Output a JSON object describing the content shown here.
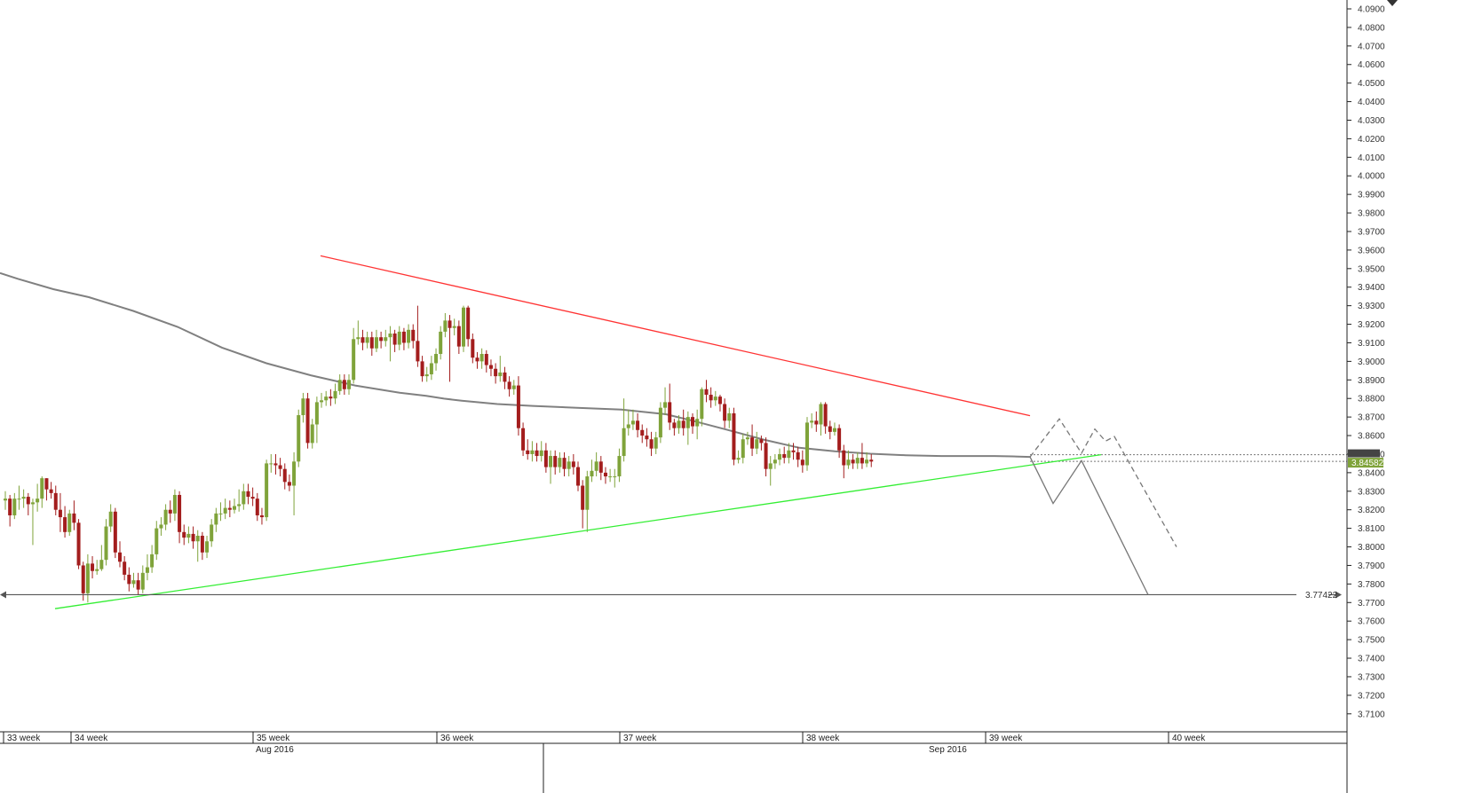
{
  "window": {
    "menu_icon": "chevron-down-icon"
  },
  "colors": {
    "bull": "#7fa33a",
    "bear": "#a31d1d",
    "ma": "#808080",
    "resistance": "#ff3333",
    "support": "#33ee33",
    "level": "#555555",
    "projection": "#777777",
    "price_badge": "#7fa33a"
  },
  "chart_data": {
    "type": "candlestick",
    "title": "",
    "xlabel": "",
    "ylabel": "",
    "ylim": [
      3.7,
      4.09
    ],
    "yticks": [
      "4.0900",
      "4.0800",
      "4.0700",
      "4.0600",
      "4.0500",
      "4.0400",
      "4.0300",
      "4.0200",
      "4.0100",
      "4.0000",
      "3.9900",
      "3.9800",
      "3.9700",
      "3.9600",
      "3.9500",
      "3.9400",
      "3.9300",
      "3.9200",
      "3.9100",
      "3.9000",
      "3.8900",
      "3.8800",
      "3.8700",
      "3.8600",
      "3.8500",
      "3.8400",
      "3.8300",
      "3.8200",
      "3.8100",
      "3.8000",
      "3.7900",
      "3.7800",
      "3.7700",
      "3.7600",
      "3.7500",
      "3.7400",
      "3.7300",
      "3.7200",
      "3.7100"
    ],
    "week_labels": [
      "33 week",
      "34 week",
      "35 week",
      "36 week",
      "37 week",
      "38 week",
      "39 week",
      "40 week"
    ],
    "month_labels": [
      "Aug 2016",
      "Sep 2016"
    ],
    "current_price": "3.84582",
    "level_label": "3.77422",
    "level_value": 3.77422,
    "candles": [
      [
        3.825,
        3.826,
        3.82,
        3.83
      ],
      [
        3.826,
        3.817,
        3.811,
        3.828
      ],
      [
        3.817,
        3.826,
        3.815,
        3.829
      ],
      [
        3.826,
        3.826,
        3.82,
        3.833
      ],
      [
        3.826,
        3.827,
        3.821,
        3.831
      ],
      [
        3.827,
        3.823,
        3.817,
        3.829
      ],
      [
        3.823,
        3.824,
        3.801,
        3.826
      ],
      [
        3.824,
        3.826,
        3.819,
        3.834
      ],
      [
        3.826,
        3.837,
        3.821,
        3.838
      ],
      [
        3.837,
        3.831,
        3.825,
        3.837
      ],
      [
        3.831,
        3.829,
        3.826,
        3.835
      ],
      [
        3.829,
        3.82,
        3.817,
        3.833
      ],
      [
        3.82,
        3.816,
        3.808,
        3.829
      ],
      [
        3.816,
        3.808,
        3.805,
        3.822
      ],
      [
        3.808,
        3.818,
        3.806,
        3.82
      ],
      [
        3.818,
        3.813,
        3.809,
        3.825
      ],
      [
        3.813,
        3.79,
        3.788,
        3.815
      ],
      [
        3.79,
        3.775,
        3.771,
        3.792
      ],
      [
        3.775,
        3.791,
        3.77,
        3.796
      ],
      [
        3.791,
        3.787,
        3.783,
        3.795
      ],
      [
        3.787,
        3.788,
        3.785,
        3.793
      ],
      [
        3.788,
        3.793,
        3.787,
        3.801
      ],
      [
        3.793,
        3.811,
        3.79,
        3.815
      ],
      [
        3.811,
        3.819,
        3.808,
        3.823
      ],
      [
        3.819,
        3.797,
        3.794,
        3.821
      ],
      [
        3.797,
        3.792,
        3.789,
        3.803
      ],
      [
        3.792,
        3.785,
        3.782,
        3.795
      ],
      [
        3.785,
        3.78,
        3.776,
        3.789
      ],
      [
        3.78,
        3.782,
        3.778,
        3.786
      ],
      [
        3.782,
        3.777,
        3.774,
        3.786
      ],
      [
        3.777,
        3.786,
        3.775,
        3.79
      ],
      [
        3.786,
        3.789,
        3.782,
        3.796
      ],
      [
        3.789,
        3.796,
        3.786,
        3.801
      ],
      [
        3.796,
        3.81,
        3.793,
        3.814
      ],
      [
        3.81,
        3.812,
        3.806,
        3.816
      ],
      [
        3.812,
        3.82,
        3.809,
        3.823
      ],
      [
        3.82,
        3.818,
        3.813,
        3.825
      ],
      [
        3.818,
        3.828,
        3.814,
        3.831
      ],
      [
        3.828,
        3.808,
        3.802,
        3.83
      ],
      [
        3.808,
        3.805,
        3.801,
        3.812
      ],
      [
        3.805,
        3.807,
        3.802,
        3.811
      ],
      [
        3.807,
        3.803,
        3.799,
        3.811
      ],
      [
        3.803,
        3.806,
        3.792,
        3.809
      ],
      [
        3.806,
        3.797,
        3.793,
        3.808
      ],
      [
        3.797,
        3.803,
        3.794,
        3.806
      ],
      [
        3.803,
        3.812,
        3.8,
        3.815
      ],
      [
        3.812,
        3.818,
        3.808,
        3.821
      ],
      [
        3.818,
        3.818,
        3.814,
        3.824
      ],
      [
        3.818,
        3.821,
        3.815,
        3.826
      ],
      [
        3.821,
        3.82,
        3.816,
        3.825
      ],
      [
        3.82,
        3.822,
        3.818,
        3.826
      ],
      [
        3.822,
        3.823,
        3.819,
        3.831
      ],
      [
        3.823,
        3.83,
        3.82,
        3.834
      ],
      [
        3.83,
        3.827,
        3.823,
        3.834
      ],
      [
        3.827,
        3.826,
        3.822,
        3.832
      ],
      [
        3.826,
        3.817,
        3.814,
        3.829
      ],
      [
        3.817,
        3.816,
        3.812,
        3.821
      ],
      [
        3.816,
        3.845,
        3.814,
        3.847
      ],
      [
        3.845,
        3.845,
        3.84,
        3.85
      ],
      [
        3.845,
        3.844,
        3.839,
        3.85
      ],
      [
        3.844,
        3.842,
        3.838,
        3.848
      ],
      [
        3.842,
        3.835,
        3.831,
        3.845
      ],
      [
        3.835,
        3.833,
        3.83,
        3.839
      ],
      [
        3.833,
        3.846,
        3.817,
        3.851
      ],
      [
        3.846,
        3.871,
        3.843,
        3.874
      ],
      [
        3.871,
        3.88,
        3.867,
        3.883
      ],
      [
        3.88,
        3.856,
        3.853,
        3.883
      ],
      [
        3.856,
        3.866,
        3.853,
        3.869
      ],
      [
        3.866,
        3.878,
        3.856,
        3.881
      ],
      [
        3.878,
        3.879,
        3.875,
        3.883
      ],
      [
        3.879,
        3.881,
        3.876,
        3.884
      ],
      [
        3.881,
        3.88,
        3.876,
        3.885
      ],
      [
        3.88,
        3.884,
        3.877,
        3.888
      ],
      [
        3.884,
        3.89,
        3.882,
        3.893
      ],
      [
        3.89,
        3.885,
        3.882,
        3.893
      ],
      [
        3.885,
        3.89,
        3.882,
        3.893
      ],
      [
        3.89,
        3.912,
        3.888,
        3.918
      ],
      [
        3.912,
        3.913,
        3.909,
        3.922
      ],
      [
        3.913,
        3.91,
        3.906,
        3.917
      ],
      [
        3.91,
        3.913,
        3.907,
        3.916
      ],
      [
        3.913,
        3.907,
        3.903,
        3.916
      ],
      [
        3.907,
        3.913,
        3.905,
        3.917
      ],
      [
        3.913,
        3.911,
        3.907,
        3.916
      ],
      [
        3.911,
        3.913,
        3.908,
        3.917
      ],
      [
        3.913,
        3.915,
        3.9,
        3.919
      ],
      [
        3.915,
        3.909,
        3.905,
        3.917
      ],
      [
        3.909,
        3.916,
        3.906,
        3.919
      ],
      [
        3.916,
        3.91,
        3.906,
        3.918
      ],
      [
        3.91,
        3.917,
        3.907,
        3.92
      ],
      [
        3.917,
        3.911,
        3.907,
        3.92
      ],
      [
        3.911,
        3.9,
        3.897,
        3.93
      ],
      [
        3.9,
        3.892,
        3.889,
        3.903
      ],
      [
        3.892,
        3.893,
        3.889,
        3.897
      ],
      [
        3.893,
        3.899,
        3.89,
        3.903
      ],
      [
        3.899,
        3.904,
        3.895,
        3.907
      ],
      [
        3.904,
        3.916,
        3.901,
        3.919
      ],
      [
        3.916,
        3.922,
        3.913,
        3.926
      ],
      [
        3.922,
        3.918,
        3.889,
        3.925
      ],
      [
        3.918,
        3.919,
        3.914,
        3.923
      ],
      [
        3.919,
        3.908,
        3.904,
        3.922
      ],
      [
        3.908,
        3.929,
        3.905,
        3.93
      ],
      [
        3.929,
        3.912,
        3.908,
        3.93
      ],
      [
        3.912,
        3.902,
        3.899,
        3.915
      ],
      [
        3.902,
        3.9,
        3.896,
        3.905
      ],
      [
        3.9,
        3.904,
        3.896,
        3.907
      ],
      [
        3.904,
        3.898,
        3.894,
        3.906
      ],
      [
        3.898,
        3.896,
        3.892,
        3.901
      ],
      [
        3.896,
        3.892,
        3.888,
        3.899
      ],
      [
        3.892,
        3.894,
        3.889,
        3.903
      ],
      [
        3.894,
        3.889,
        3.885,
        3.897
      ],
      [
        3.889,
        3.885,
        3.881,
        3.892
      ],
      [
        3.885,
        3.887,
        3.882,
        3.89
      ],
      [
        3.887,
        3.864,
        3.86,
        3.892
      ],
      [
        3.864,
        3.852,
        3.849,
        3.867
      ],
      [
        3.852,
        3.85,
        3.847,
        3.858
      ],
      [
        3.85,
        3.852,
        3.846,
        3.857
      ],
      [
        3.852,
        3.849,
        3.846,
        3.856
      ],
      [
        3.849,
        3.852,
        3.846,
        3.857
      ],
      [
        3.852,
        3.843,
        3.84,
        3.856
      ],
      [
        3.843,
        3.849,
        3.834,
        3.852
      ],
      [
        3.849,
        3.843,
        3.839,
        3.852
      ],
      [
        3.843,
        3.848,
        3.84,
        3.851
      ],
      [
        3.848,
        3.842,
        3.838,
        3.851
      ],
      [
        3.842,
        3.846,
        3.838,
        3.849
      ],
      [
        3.846,
        3.843,
        3.839,
        3.85
      ],
      [
        3.843,
        3.833,
        3.83,
        3.846
      ],
      [
        3.833,
        3.82,
        3.81,
        3.836
      ],
      [
        3.82,
        3.838,
        3.808,
        3.841
      ],
      [
        3.838,
        3.841,
        3.835,
        3.847
      ],
      [
        3.841,
        3.846,
        3.838,
        3.851
      ],
      [
        3.846,
        3.84,
        3.836,
        3.849
      ],
      [
        3.84,
        3.838,
        3.834,
        3.843
      ],
      [
        3.838,
        3.838,
        3.835,
        3.842
      ],
      [
        3.838,
        3.838,
        3.832,
        3.842
      ],
      [
        3.838,
        3.849,
        3.835,
        3.853
      ],
      [
        3.849,
        3.864,
        3.846,
        3.88
      ],
      [
        3.864,
        3.866,
        3.86,
        3.874
      ],
      [
        3.866,
        3.868,
        3.863,
        3.874
      ],
      [
        3.868,
        3.863,
        3.859,
        3.872
      ],
      [
        3.863,
        3.86,
        3.856,
        3.866
      ],
      [
        3.86,
        3.858,
        3.854,
        3.864
      ],
      [
        3.858,
        3.853,
        3.849,
        3.862
      ],
      [
        3.853,
        3.859,
        3.85,
        3.862
      ],
      [
        3.859,
        3.875,
        3.856,
        3.878
      ],
      [
        3.875,
        3.878,
        3.871,
        3.886
      ],
      [
        3.878,
        3.867,
        3.863,
        3.888
      ],
      [
        3.867,
        3.864,
        3.86,
        3.869
      ],
      [
        3.864,
        3.868,
        3.861,
        3.871
      ],
      [
        3.868,
        3.864,
        3.86,
        3.874
      ],
      [
        3.864,
        3.87,
        3.855,
        3.873
      ],
      [
        3.87,
        3.865,
        3.861,
        3.872
      ],
      [
        3.865,
        3.869,
        3.858,
        3.874
      ],
      [
        3.869,
        3.885,
        3.865,
        3.886
      ],
      [
        3.885,
        3.882,
        3.878,
        3.89
      ],
      [
        3.882,
        3.879,
        3.875,
        3.886
      ],
      [
        3.879,
        3.881,
        3.876,
        3.884
      ],
      [
        3.881,
        3.877,
        3.873,
        3.882
      ],
      [
        3.877,
        3.868,
        3.864,
        3.88
      ],
      [
        3.868,
        3.872,
        3.864,
        3.875
      ],
      [
        3.872,
        3.847,
        3.844,
        3.875
      ],
      [
        3.847,
        3.848,
        3.845,
        3.852
      ],
      [
        3.848,
        3.858,
        3.845,
        3.861
      ],
      [
        3.858,
        3.859,
        3.855,
        3.862
      ],
      [
        3.859,
        3.853,
        3.849,
        3.866
      ],
      [
        3.853,
        3.858,
        3.85,
        3.862
      ],
      [
        3.858,
        3.856,
        3.852,
        3.86
      ],
      [
        3.856,
        3.842,
        3.838,
        3.859
      ],
      [
        3.842,
        3.845,
        3.833,
        3.849
      ],
      [
        3.845,
        3.847,
        3.842,
        3.85
      ],
      [
        3.847,
        3.85,
        3.844,
        3.853
      ],
      [
        3.85,
        3.848,
        3.845,
        3.854
      ],
      [
        3.848,
        3.852,
        3.845,
        3.856
      ],
      [
        3.852,
        3.851,
        3.847,
        3.856
      ],
      [
        3.851,
        3.847,
        3.843,
        3.854
      ],
      [
        3.847,
        3.844,
        3.84,
        3.852
      ],
      [
        3.844,
        3.867,
        3.841,
        3.87
      ],
      [
        3.867,
        3.868,
        3.864,
        3.872
      ],
      [
        3.868,
        3.866,
        3.862,
        3.873
      ],
      [
        3.866,
        3.877,
        3.86,
        3.878
      ],
      [
        3.877,
        3.865,
        3.861,
        3.878
      ],
      [
        3.865,
        3.862,
        3.858,
        3.868
      ],
      [
        3.862,
        3.864,
        3.86,
        3.867
      ],
      [
        3.864,
        3.852,
        3.848,
        3.866
      ],
      [
        3.852,
        3.844,
        3.837,
        3.855
      ],
      [
        3.844,
        3.847,
        3.842,
        3.852
      ],
      [
        3.847,
        3.845,
        3.842,
        3.85
      ],
      [
        3.845,
        3.848,
        3.842,
        3.851
      ],
      [
        3.848,
        3.845,
        3.842,
        3.856
      ],
      [
        3.845,
        3.847,
        3.843,
        3.851
      ],
      [
        3.847,
        3.846,
        3.843,
        3.85
      ]
    ],
    "moving_average": [
      [
        0,
        3.9476
      ],
      [
        20,
        3.9445
      ],
      [
        60,
        3.9389
      ],
      [
        100,
        3.9346
      ],
      [
        150,
        3.9272
      ],
      [
        200,
        3.9186
      ],
      [
        250,
        3.9074
      ],
      [
        300,
        3.899
      ],
      [
        350,
        3.8925
      ],
      [
        400,
        3.887
      ],
      [
        450,
        3.8831
      ],
      [
        480,
        3.8814
      ],
      [
        500,
        3.8799
      ],
      [
        520,
        3.8788
      ],
      [
        560,
        3.877
      ],
      [
        600,
        3.876
      ],
      [
        650,
        3.875
      ],
      [
        700,
        3.874
      ],
      [
        750,
        3.8715
      ],
      [
        780,
        3.868
      ],
      [
        820,
        3.863
      ],
      [
        860,
        3.8578
      ],
      [
        900,
        3.8534
      ],
      [
        940,
        3.8515
      ],
      [
        980,
        3.8502
      ],
      [
        1020,
        3.8494
      ],
      [
        1060,
        3.849
      ],
      [
        1100,
        3.849
      ],
      [
        1120,
        3.849
      ],
      [
        1140,
        3.8488
      ],
      [
        1160,
        3.8485
      ]
    ],
    "resistance_line": [
      [
        361,
        3.9569
      ],
      [
        1160,
        3.8707
      ]
    ],
    "support_line": [
      [
        62,
        3.7667
      ],
      [
        1240,
        3.8497
      ]
    ],
    "horizontal_level_line": [
      [
        0,
        3.77422
      ],
      [
        1495,
        3.77422
      ]
    ],
    "projection_solid": [
      [
        1160,
        3.8485
      ],
      [
        1186,
        3.8234
      ],
      [
        1218,
        3.8465
      ],
      [
        1293,
        3.7742
      ]
    ],
    "projection_dashed": [
      [
        1160,
        3.8485
      ],
      [
        1193,
        3.869
      ],
      [
        1218,
        3.8505
      ],
      [
        1233,
        3.8635
      ],
      [
        1245,
        3.857
      ],
      [
        1255,
        3.8595
      ],
      [
        1325,
        3.8
      ]
    ],
    "dotted_levels": [
      3.8497,
      3.8461
    ]
  }
}
